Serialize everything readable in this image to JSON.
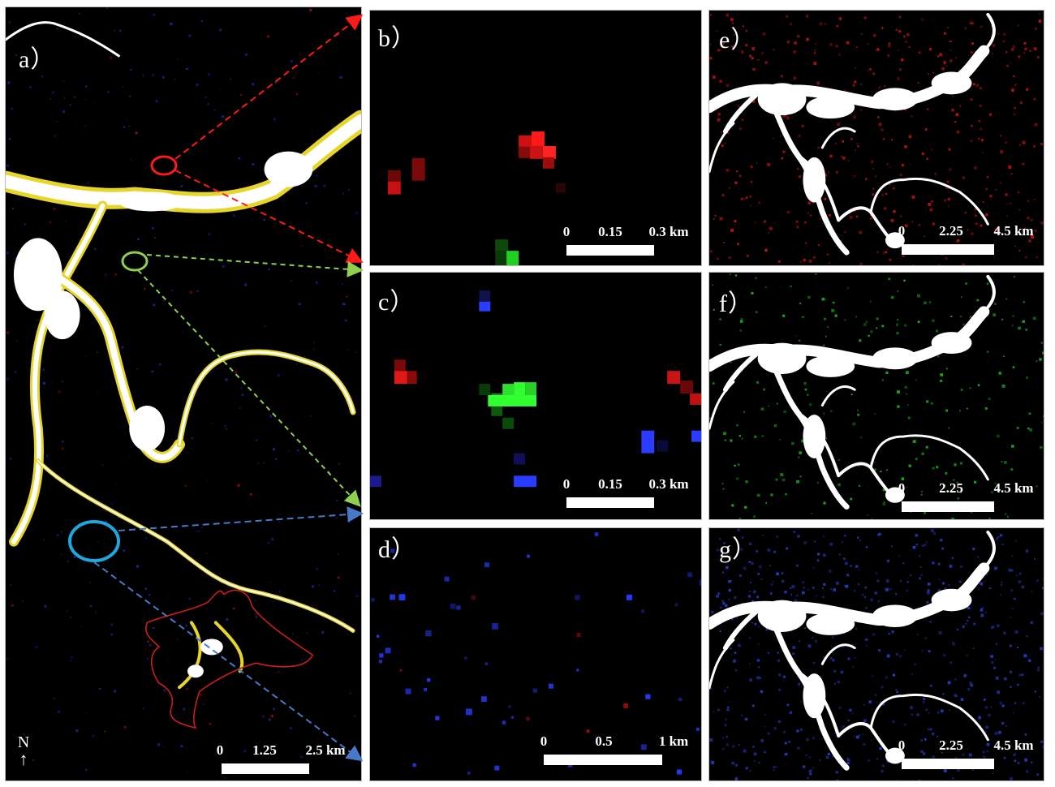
{
  "panels": {
    "a": {
      "label": "a）",
      "scale": {
        "ticks": [
          "0",
          "1.25",
          "2.5 km"
        ]
      },
      "north": "N",
      "north_arrow": "↑"
    },
    "b": {
      "label": "b）",
      "scale": {
        "ticks": [
          "0",
          "0.15",
          "0.3 km"
        ]
      }
    },
    "c": {
      "label": "c）",
      "scale": {
        "ticks": [
          "0",
          "0.15",
          "0.3 km"
        ]
      }
    },
    "d": {
      "label": "d）",
      "scale": {
        "ticks": [
          "0",
          "0.5",
          "1 km"
        ]
      }
    },
    "e": {
      "label": "e）",
      "scale": {
        "ticks": [
          "0",
          "2.25",
          "4.5 km"
        ]
      }
    },
    "f": {
      "label": "f）",
      "scale": {
        "ticks": [
          "0",
          "2.25",
          "4.5 km"
        ]
      }
    },
    "g": {
      "label": "g）",
      "scale": {
        "ticks": [
          "0",
          "2.25",
          "4.5 km"
        ]
      }
    }
  },
  "colors": {
    "red": "#ff2020",
    "green": "#30ff30",
    "blue": "#2a3cff",
    "marker_red": "#ff1a1a",
    "marker_green": "#8fd14f",
    "marker_blue": "#1fa8e0",
    "boundary": "#c81e1e"
  }
}
